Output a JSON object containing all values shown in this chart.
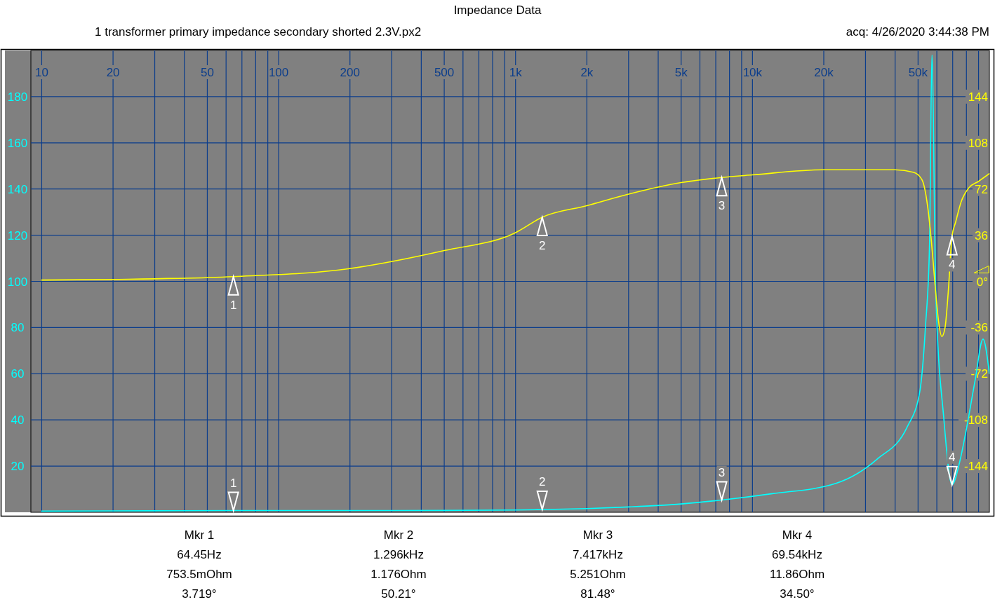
{
  "chart_data": {
    "type": "line",
    "title": "Impedance Data",
    "subtitle": "1 transformer primary impedance secondary shorted 2.3V.px2",
    "log": "x",
    "grid": true,
    "line_style": "solid",
    "marker": "none",
    "xlim": [
      9,
      100000
    ],
    "xticks": [
      10,
      20,
      {
        "value": 30,
        "label": null
      },
      {
        "value": 40,
        "label": null
      },
      50,
      {
        "value": 60,
        "label": null
      },
      {
        "value": 70,
        "label": null
      },
      {
        "value": 80,
        "label": null
      },
      {
        "value": 90,
        "label": null
      },
      100,
      200,
      {
        "value": 300,
        "label": null
      },
      {
        "value": 400,
        "label": null
      },
      500,
      {
        "value": 600,
        "label": null
      },
      {
        "value": 700,
        "label": null
      },
      {
        "value": 800,
        "label": null
      },
      {
        "value": 900,
        "label": null
      },
      {
        "value": 1000,
        "label": "1k"
      },
      {
        "value": 2000,
        "label": "2k"
      },
      {
        "value": 3000,
        "label": null
      },
      {
        "value": 4000,
        "label": null
      },
      {
        "value": 5000,
        "label": "5k"
      },
      {
        "value": 6000,
        "label": null
      },
      {
        "value": 7000,
        "label": null
      },
      {
        "value": 8000,
        "label": null
      },
      {
        "value": 9000,
        "label": null
      },
      {
        "value": 10000,
        "label": "10k"
      },
      {
        "value": 20000,
        "label": "20k"
      },
      {
        "value": 30000,
        "label": null
      },
      {
        "value": 40000,
        "label": null
      },
      {
        "value": 50000,
        "label": "50k"
      },
      {
        "value": 60000,
        "label": null
      },
      {
        "value": 70000,
        "label": null
      },
      {
        "value": 80000,
        "label": null
      },
      {
        "value": 90000,
        "label": null
      }
    ],
    "ylim": [
      0,
      200
    ],
    "yticks": [
      20,
      40,
      60,
      80,
      100,
      120,
      140,
      160,
      180
    ],
    "y2lim": [
      -180,
      180
    ],
    "y2ticks": [
      -144,
      -108,
      -72,
      -36,
      {
        "value": 0,
        "label": "0°"
      },
      36,
      72,
      108,
      144
    ],
    "series": [
      {
        "color": "#00ffff",
        "x": [
          10,
          20,
          64.45,
          200,
          500,
          1000,
          1296,
          2000,
          3000,
          5000,
          7417,
          12000,
          22500,
          33600,
          45000,
          50800,
          53700,
          55900,
          57200,
          59400,
          64300,
          69540,
          75000,
          79300,
          87000,
          94000,
          100000
        ],
        "values": [
          0.5,
          0.6,
          0.75,
          0.75,
          0.8,
          1.0,
          1.2,
          1.6,
          2.3,
          3.6,
          5.3,
          8,
          12.5,
          23,
          37,
          52,
          80,
          116,
          198,
          95,
          40,
          11.9,
          22,
          34,
          57,
          75,
          60
        ]
      },
      {
        "color": "#ffff00",
        "axis": "y2",
        "x": [
          10,
          20,
          64.45,
          200,
          500,
          1000,
          1296,
          2000,
          3000,
          5000,
          7417,
          10000,
          20000,
          40000,
          48000,
          52000,
          55000,
          57000,
          59000,
          61000,
          63000,
          65000,
          67000,
          69540,
          72000,
          76000,
          82000,
          90000,
          100000
        ],
        "values": [
          1,
          1.5,
          3.7,
          10,
          24,
          38,
          50,
          59,
          68,
          77,
          81,
          83,
          87,
          87,
          85,
          79,
          57,
          30,
          -3,
          -31,
          -43,
          -36,
          -9,
          35,
          46,
          62,
          73,
          78,
          84
        ]
      }
    ],
    "annotations": [
      "acq: 4/26/2020 3:44:38 PM",
      {
        "text": "1",
        "x": 64.45,
        "y": 0.75
      },
      {
        "text": "2",
        "x": 1296,
        "y": 1.2
      },
      {
        "text": "3",
        "x": 7417,
        "y": 5.3
      },
      {
        "text": "4",
        "x": 69540,
        "y": 11.9
      },
      "1",
      "2",
      "3",
      "4",
      "Mkr 1",
      "64.45Hz",
      "753.5mOhm",
      "3.719°",
      "Mkr 2",
      "1.296kHz",
      "1.176Ohm",
      "50.21°",
      "Mkr 3",
      "7.417kHz",
      "5.251Ohm",
      "81.48°",
      "Mkr 4",
      "69.54kHz",
      "11.86Ohm",
      "34.50°"
    ]
  }
}
